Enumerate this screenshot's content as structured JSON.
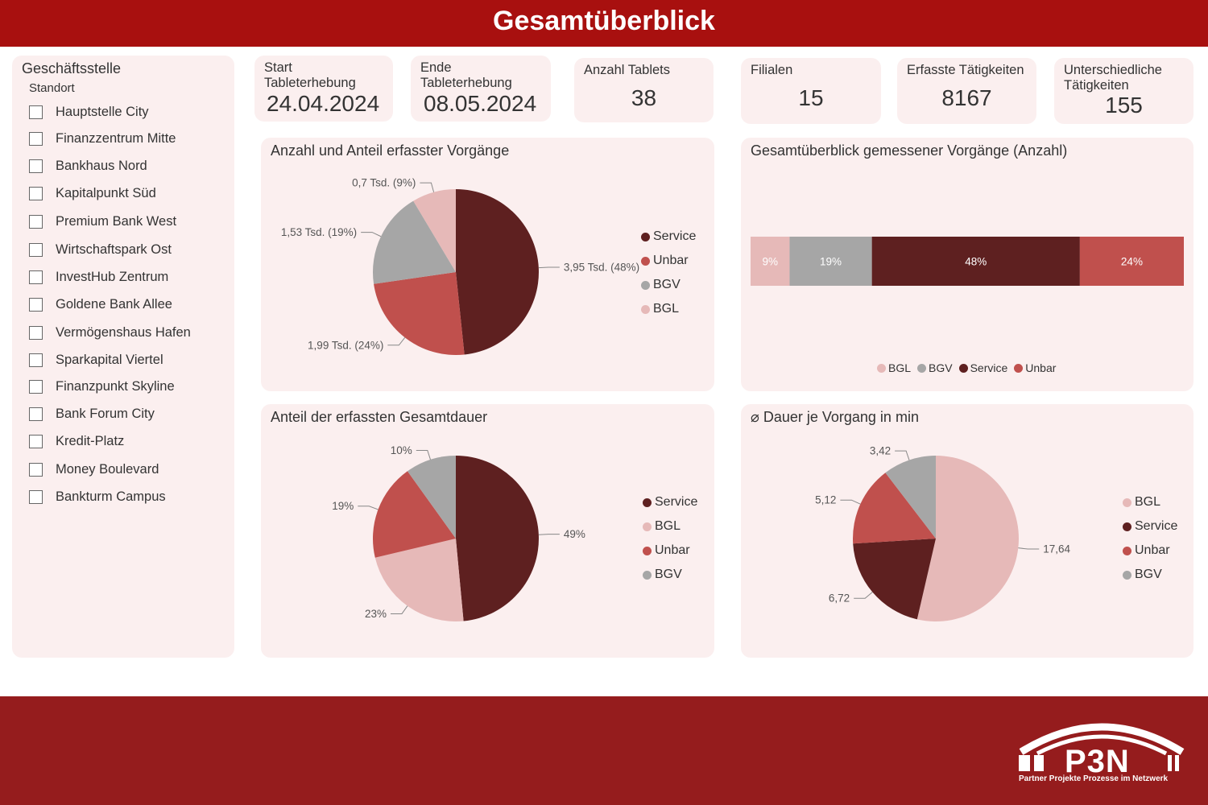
{
  "header": {
    "title": "Gesamtüberblick"
  },
  "filter": {
    "title": "Geschäftsstelle",
    "subtitle": "Standort",
    "items": [
      "Hauptstelle City",
      "Finanzzentrum Mitte",
      "Bankhaus Nord",
      "Kapitalpunkt Süd",
      "Premium Bank West",
      "Wirtschaftspark Ost",
      "InvestHub Zentrum",
      "Goldene Bank Allee",
      "Vermögenshaus Hafen",
      "Sparkapital Viertel",
      "Finanzpunkt Skyline",
      "Bank Forum City",
      "Kredit-Platz",
      "Money Boulevard",
      "Bankturm Campus"
    ]
  },
  "kpis": {
    "start": {
      "label": "Start\nTableterhebung",
      "value": "24.04.2024"
    },
    "end": {
      "label": "Ende\nTableterhebung",
      "value": "08.05.2024"
    },
    "tablets": {
      "label": "Anzahl Tablets",
      "value": "38"
    },
    "filialen": {
      "label": "Filialen",
      "value": "15"
    },
    "taetigkeiten": {
      "label": "Erfasste Tätigkeiten",
      "value": "8167"
    },
    "unterschiedlich": {
      "label": "Unterschiedliche\nTätigkeiten",
      "value": "155"
    }
  },
  "colors": {
    "service": "#5e2020",
    "unbar": "#c0504d",
    "bgv": "#a6a6a6",
    "bgl": "#e6b9b8"
  },
  "chart_data": [
    {
      "type": "pie",
      "title": "Anzahl und Anteil erfasster Vorgänge",
      "categories": [
        "Service",
        "Unbar",
        "BGV",
        "BGL"
      ],
      "values": [
        3950,
        1990,
        1530,
        700
      ],
      "labels": [
        "3,95 Tsd. (48%)",
        "1,99 Tsd. (24%)",
        "1,53 Tsd. (19%)",
        "0,7 Tsd. (9%)"
      ],
      "legend": [
        "Service",
        "Unbar",
        "BGV",
        "BGL"
      ],
      "legend_position": "right"
    },
    {
      "type": "bar",
      "stacked": true,
      "orientation": "horizontal",
      "title": "Gesamtüberblick gemessener Vorgänge (Anzahl)",
      "categories": [
        "BGL",
        "BGV",
        "Service",
        "Unbar"
      ],
      "values": [
        9,
        19,
        48,
        24
      ],
      "labels": [
        "9%",
        "19%",
        "48%",
        "24%"
      ],
      "legend": [
        "BGL",
        "BGV",
        "Service",
        "Unbar"
      ],
      "legend_position": "bottom"
    },
    {
      "type": "pie",
      "title": "Anteil der erfassten Gesamtdauer",
      "categories": [
        "Service",
        "BGL",
        "Unbar",
        "BGV"
      ],
      "values": [
        49,
        23,
        19,
        10
      ],
      "labels": [
        "49%",
        "23%",
        "19%",
        "10%"
      ],
      "legend": [
        "Service",
        "BGL",
        "Unbar",
        "BGV"
      ],
      "legend_position": "right"
    },
    {
      "type": "pie",
      "title": "⌀ Dauer je Vorgang in min",
      "categories": [
        "BGL",
        "Service",
        "Unbar",
        "BGV"
      ],
      "values": [
        17.64,
        6.72,
        5.12,
        3.42
      ],
      "labels": [
        "17,64",
        "6,72",
        "5,12",
        "3,42"
      ],
      "legend": [
        "BGL",
        "Service",
        "Unbar",
        "BGV"
      ],
      "legend_position": "right"
    }
  ],
  "logo": {
    "text": "P3N",
    "tagline": "Partner Projekte Prozesse im Netzwerk"
  }
}
